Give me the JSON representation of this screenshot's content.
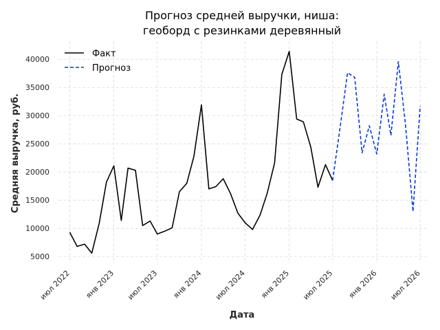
{
  "chart_data": {
    "type": "line",
    "title_lines": [
      "Прогноз средней выручки, ниша:",
      "геоборд с резинками деревянный"
    ],
    "xlabel": "Дата",
    "ylabel": "Средняя выручка, руб.",
    "ylim": [
      3800,
      43200
    ],
    "yticks": [
      5000,
      10000,
      15000,
      20000,
      25000,
      30000,
      35000,
      40000
    ],
    "xlim": [
      "2022-05-15",
      "2026-08-01"
    ],
    "xticks": [
      {
        "date": "2022-07-01",
        "label": "июл 2022"
      },
      {
        "date": "2023-01-01",
        "label": "янв 2023"
      },
      {
        "date": "2023-07-01",
        "label": "июл 2023"
      },
      {
        "date": "2024-01-01",
        "label": "янв 2024"
      },
      {
        "date": "2024-07-01",
        "label": "июл 2024"
      },
      {
        "date": "2025-01-01",
        "label": "янв 2025"
      },
      {
        "date": "2025-07-01",
        "label": "июл 2025"
      },
      {
        "date": "2026-01-01",
        "label": "янв 2026"
      },
      {
        "date": "2026-07-01",
        "label": "июл 2026"
      }
    ],
    "grid": true,
    "legend_position": "top-left",
    "series": [
      {
        "name": "Факт",
        "style": "solid",
        "color": "#000000",
        "points": [
          {
            "x": "2022-07-01",
            "y": 9300
          },
          {
            "x": "2022-08-01",
            "y": 6800
          },
          {
            "x": "2022-09-01",
            "y": 7200
          },
          {
            "x": "2022-10-01",
            "y": 5600
          },
          {
            "x": "2022-11-01",
            "y": 10900
          },
          {
            "x": "2022-12-01",
            "y": 18200
          },
          {
            "x": "2023-01-01",
            "y": 21100
          },
          {
            "x": "2023-02-01",
            "y": 11400
          },
          {
            "x": "2023-03-01",
            "y": 20700
          },
          {
            "x": "2023-04-01",
            "y": 20300
          },
          {
            "x": "2023-05-01",
            "y": 10500
          },
          {
            "x": "2023-06-01",
            "y": 11300
          },
          {
            "x": "2023-07-01",
            "y": 9000
          },
          {
            "x": "2023-08-01",
            "y": 9500
          },
          {
            "x": "2023-09-01",
            "y": 10100
          },
          {
            "x": "2023-10-01",
            "y": 16500
          },
          {
            "x": "2023-11-01",
            "y": 18000
          },
          {
            "x": "2023-12-01",
            "y": 22800
          },
          {
            "x": "2024-01-01",
            "y": 31900
          },
          {
            "x": "2024-02-01",
            "y": 17000
          },
          {
            "x": "2024-03-01",
            "y": 17400
          },
          {
            "x": "2024-04-01",
            "y": 18800
          },
          {
            "x": "2024-05-01",
            "y": 16200
          },
          {
            "x": "2024-06-01",
            "y": 12700
          },
          {
            "x": "2024-07-01",
            "y": 11000
          },
          {
            "x": "2024-08-01",
            "y": 9800
          },
          {
            "x": "2024-09-01",
            "y": 12300
          },
          {
            "x": "2024-10-01",
            "y": 16200
          },
          {
            "x": "2024-11-01",
            "y": 21600
          },
          {
            "x": "2024-12-01",
            "y": 37300
          },
          {
            "x": "2025-01-01",
            "y": 41400
          },
          {
            "x": "2025-02-01",
            "y": 29400
          },
          {
            "x": "2025-03-01",
            "y": 28900
          },
          {
            "x": "2025-04-01",
            "y": 24400
          },
          {
            "x": "2025-05-01",
            "y": 17300
          },
          {
            "x": "2025-06-01",
            "y": 21300
          },
          {
            "x": "2025-07-01",
            "y": 18500
          }
        ]
      },
      {
        "name": "Прогноз",
        "style": "dashed",
        "color": "#0038e0",
        "points": [
          {
            "x": "2025-07-01",
            "y": 18500
          },
          {
            "x": "2025-08-01",
            "y": 27800
          },
          {
            "x": "2025-09-01",
            "y": 37600
          },
          {
            "x": "2025-10-01",
            "y": 36800
          },
          {
            "x": "2025-11-01",
            "y": 23400
          },
          {
            "x": "2025-12-01",
            "y": 28200
          },
          {
            "x": "2026-01-01",
            "y": 23200
          },
          {
            "x": "2026-02-01",
            "y": 33800
          },
          {
            "x": "2026-03-01",
            "y": 26500
          },
          {
            "x": "2026-04-01",
            "y": 39600
          },
          {
            "x": "2026-05-01",
            "y": 28300
          },
          {
            "x": "2026-06-01",
            "y": 13000
          },
          {
            "x": "2026-07-01",
            "y": 31700
          }
        ]
      }
    ]
  }
}
